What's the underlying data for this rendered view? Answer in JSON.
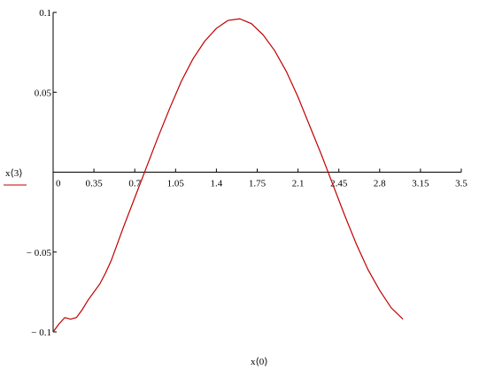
{
  "chart_data": {
    "type": "line",
    "xlabel": "x⟨0⟩",
    "ylabel": "x⟨3⟩",
    "x": [
      0,
      0.05,
      0.1,
      0.15,
      0.2,
      0.25,
      0.3,
      0.35,
      0.4,
      0.45,
      0.5,
      0.6,
      0.7,
      0.8,
      0.9,
      1.0,
      1.1,
      1.2,
      1.3,
      1.4,
      1.5,
      1.6,
      1.7,
      1.8,
      1.9,
      2.0,
      2.1,
      2.2,
      2.3,
      2.4,
      2.5,
      2.6,
      2.7,
      2.8,
      2.9,
      3.0
    ],
    "series": [
      {
        "color": "#c00000",
        "values": [
          -0.1,
          -0.095,
          -0.091,
          -0.092,
          -0.091,
          -0.086,
          -0.08,
          -0.075,
          -0.07,
          -0.063,
          -0.055,
          -0.035,
          -0.016,
          0.003,
          0.022,
          0.04,
          0.057,
          0.071,
          0.082,
          0.09,
          0.095,
          0.096,
          0.093,
          0.086,
          0.076,
          0.063,
          0.047,
          0.029,
          0.011,
          -0.008,
          -0.027,
          -0.045,
          -0.061,
          -0.074,
          -0.085,
          -0.092
        ]
      }
    ],
    "xlim": [
      0,
      3.5
    ],
    "ylim": [
      -0.1,
      0.1
    ],
    "xticks": [
      0,
      0.35,
      0.7,
      1.05,
      1.4,
      1.75,
      2.1,
      2.45,
      2.8,
      3.15,
      3.5
    ],
    "yticks": [
      0.1,
      0.05,
      {
        "value": -0.05,
        "label": "− 0.05"
      },
      {
        "value": -0.1,
        "label": "− 0.1"
      }
    ]
  }
}
